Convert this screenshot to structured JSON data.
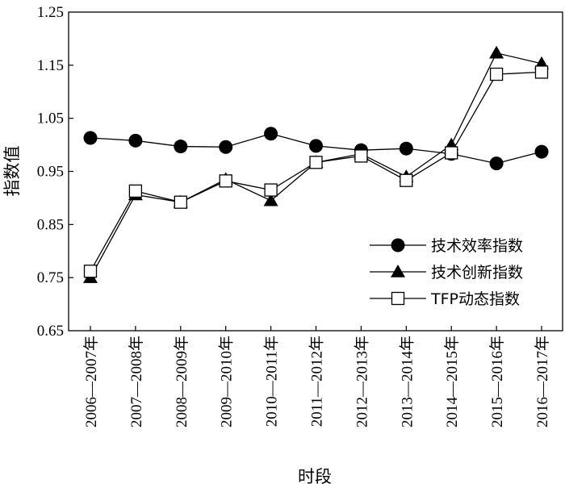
{
  "chart_data": {
    "type": "line",
    "xlabel": "时段",
    "ylabel": "指数值",
    "ylim": [
      0.65,
      1.25
    ],
    "yticks": [
      "0.65",
      "0.75",
      "0.85",
      "0.95",
      "1.05",
      "1.15",
      "1.25"
    ],
    "categories": [
      "2006—2007年",
      "2007—2008年",
      "2008—2009年",
      "2009—2010年",
      "2010—2011年",
      "2011—2012年",
      "2012—2013年",
      "2013—2014年",
      "2014—2015年",
      "2015—2016年",
      "2016—2017年"
    ],
    "series": [
      {
        "name": "技术效率指数",
        "marker": "circle-filled",
        "values": [
          1.013,
          1.008,
          0.997,
          0.996,
          1.021,
          0.998,
          0.99,
          0.993,
          0.983,
          0.965,
          0.987
        ]
      },
      {
        "name": "技术创新指数",
        "marker": "triangle-filled",
        "values": [
          0.75,
          0.906,
          0.892,
          0.935,
          0.895,
          0.967,
          0.983,
          0.94,
          1.0,
          1.173,
          1.153
        ]
      },
      {
        "name": "TFP动态指数",
        "marker": "square-open",
        "values": [
          0.762,
          0.913,
          0.892,
          0.932,
          0.915,
          0.967,
          0.979,
          0.933,
          0.985,
          1.133,
          1.137
        ]
      }
    ],
    "legend_position": "bottom-right",
    "grid": false
  }
}
